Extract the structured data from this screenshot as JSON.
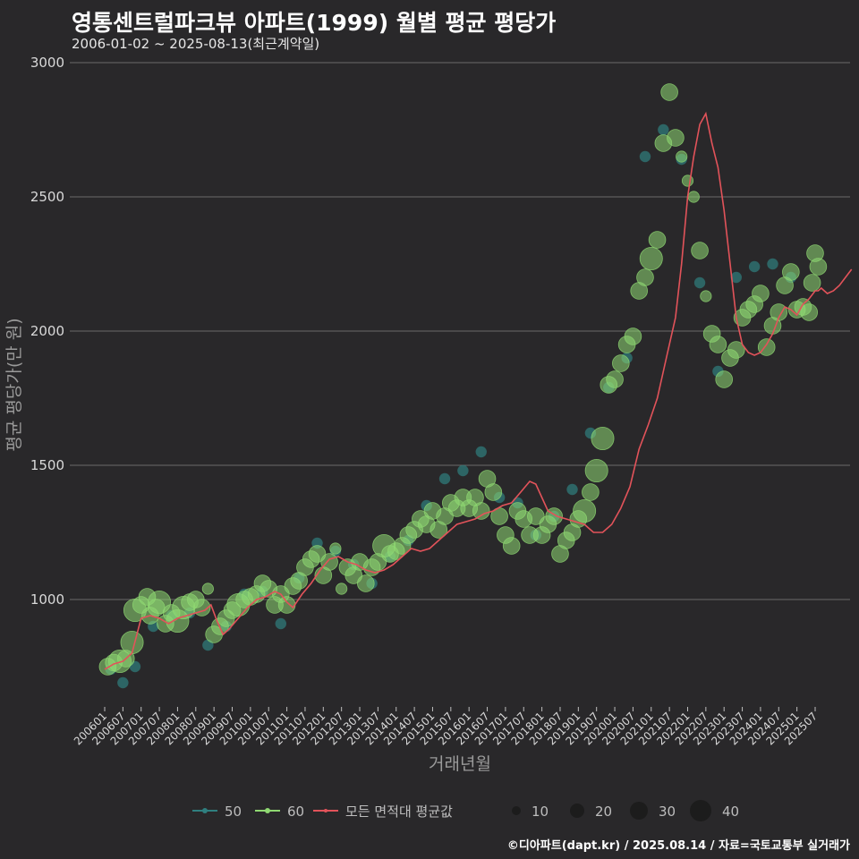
{
  "header": {
    "title": "영통센트럴파크뷰 아파트(1999) 월별 평균 평당가",
    "subtitle": "2006-01-02 ~ 2025-08-13(최근계약일)"
  },
  "footer": {
    "credit": "©디아파트(dapt.kr) / 2025.08.14 / 자료=국토교통부 실거래가"
  },
  "colors": {
    "s50": "#2f7f7f",
    "s60": "#8fd872",
    "avg": "#e2535a",
    "grid": "#6a6a6a",
    "size": "#1c1c1c"
  },
  "chart_data": {
    "type": "scatter",
    "title": "영통센트럴파크뷰 아파트(1999) 월별 평균 평당가",
    "xlabel": "거래년월",
    "ylabel": "평균 평당가(만 원)",
    "ylim": [
      600,
      3000
    ],
    "yticks": [
      1000,
      1500,
      2000,
      2500,
      3000
    ],
    "xticks": [
      "200601",
      "200607",
      "200701",
      "200707",
      "200801",
      "200807",
      "200901",
      "200907",
      "201001",
      "201007",
      "201101",
      "201107",
      "201201",
      "201207",
      "201301",
      "201307",
      "201401",
      "201407",
      "201501",
      "201507",
      "201601",
      "201607",
      "201701",
      "201707",
      "201801",
      "201807",
      "201901",
      "201907",
      "202001",
      "202007",
      "202101",
      "202107",
      "202201",
      "202207",
      "202301",
      "202307",
      "202401",
      "202407",
      "202501",
      "202507"
    ],
    "x_range_months": [
      0,
      234
    ],
    "legend": {
      "series": [
        {
          "key": "s50",
          "label": "50"
        },
        {
          "key": "s60",
          "label": "60"
        },
        {
          "key": "avg",
          "label": "모든 면적대 평균값"
        }
      ],
      "sizes": [
        10,
        20,
        30,
        40
      ]
    },
    "avg_line": [
      [
        0,
        740
      ],
      [
        3,
        760
      ],
      [
        6,
        770
      ],
      [
        9,
        800
      ],
      [
        12,
        930
      ],
      [
        15,
        940
      ],
      [
        18,
        930
      ],
      [
        21,
        910
      ],
      [
        24,
        930
      ],
      [
        27,
        940
      ],
      [
        30,
        950
      ],
      [
        33,
        960
      ],
      [
        35,
        980
      ],
      [
        37,
        920
      ],
      [
        39,
        870
      ],
      [
        41,
        890
      ],
      [
        44,
        930
      ],
      [
        47,
        970
      ],
      [
        50,
        1000
      ],
      [
        53,
        1010
      ],
      [
        56,
        1030
      ],
      [
        58,
        1020
      ],
      [
        60,
        990
      ],
      [
        62,
        970
      ],
      [
        65,
        1020
      ],
      [
        68,
        1060
      ],
      [
        71,
        1110
      ],
      [
        74,
        1150
      ],
      [
        77,
        1160
      ],
      [
        80,
        1140
      ],
      [
        83,
        1130
      ],
      [
        86,
        1110
      ],
      [
        89,
        1100
      ],
      [
        92,
        1110
      ],
      [
        95,
        1130
      ],
      [
        98,
        1160
      ],
      [
        101,
        1190
      ],
      [
        104,
        1180
      ],
      [
        107,
        1190
      ],
      [
        110,
        1220
      ],
      [
        113,
        1250
      ],
      [
        116,
        1280
      ],
      [
        119,
        1290
      ],
      [
        122,
        1300
      ],
      [
        125,
        1320
      ],
      [
        128,
        1330
      ],
      [
        131,
        1350
      ],
      [
        134,
        1360
      ],
      [
        137,
        1400
      ],
      [
        140,
        1440
      ],
      [
        142,
        1430
      ],
      [
        144,
        1380
      ],
      [
        146,
        1330
      ],
      [
        149,
        1310
      ],
      [
        152,
        1300
      ],
      [
        155,
        1290
      ],
      [
        158,
        1280
      ],
      [
        161,
        1250
      ],
      [
        164,
        1250
      ],
      [
        167,
        1280
      ],
      [
        170,
        1340
      ],
      [
        173,
        1420
      ],
      [
        176,
        1560
      ],
      [
        179,
        1650
      ],
      [
        182,
        1750
      ],
      [
        185,
        1900
      ],
      [
        188,
        2050
      ],
      [
        190,
        2250
      ],
      [
        192,
        2500
      ],
      [
        194,
        2650
      ],
      [
        196,
        2770
      ],
      [
        198,
        2810
      ],
      [
        200,
        2700
      ],
      [
        202,
        2610
      ],
      [
        204,
        2450
      ],
      [
        206,
        2250
      ],
      [
        208,
        2050
      ],
      [
        210,
        1950
      ],
      [
        212,
        1920
      ],
      [
        214,
        1910
      ],
      [
        216,
        1920
      ],
      [
        218,
        1950
      ],
      [
        220,
        1990
      ],
      [
        222,
        2050
      ],
      [
        224,
        2090
      ],
      [
        226,
        2080
      ],
      [
        228,
        2060
      ],
      [
        230,
        2100
      ],
      [
        232,
        2120
      ],
      [
        234,
        2150
      ],
      [
        236,
        2160
      ],
      [
        238,
        2140
      ],
      [
        240,
        2150
      ],
      [
        242,
        2170
      ],
      [
        244,
        2200
      ],
      [
        246,
        2230
      ],
      [
        235,
        2150
      ]
    ],
    "points_s60": [
      [
        1,
        750,
        2
      ],
      [
        3,
        765,
        2
      ],
      [
        5,
        770,
        3
      ],
      [
        7,
        780,
        2
      ],
      [
        9,
        840,
        3
      ],
      [
        10,
        960,
        3
      ],
      [
        12,
        980,
        2
      ],
      [
        14,
        1010,
        2
      ],
      [
        15,
        940,
        2
      ],
      [
        17,
        970,
        2
      ],
      [
        18,
        990,
        3
      ],
      [
        20,
        910,
        2
      ],
      [
        22,
        950,
        2
      ],
      [
        24,
        920,
        3
      ],
      [
        26,
        970,
        3
      ],
      [
        28,
        990,
        2
      ],
      [
        30,
        1000,
        2
      ],
      [
        32,
        970,
        2
      ],
      [
        34,
        1040,
        1
      ],
      [
        36,
        870,
        2
      ],
      [
        38,
        900,
        2
      ],
      [
        40,
        930,
        2
      ],
      [
        42,
        960,
        2
      ],
      [
        44,
        980,
        3
      ],
      [
        46,
        1000,
        2
      ],
      [
        48,
        1010,
        2
      ],
      [
        50,
        1020,
        2
      ],
      [
        52,
        1060,
        2
      ],
      [
        54,
        1040,
        2
      ],
      [
        56,
        980,
        2
      ],
      [
        58,
        1020,
        2
      ],
      [
        60,
        980,
        2
      ],
      [
        62,
        1050,
        2
      ],
      [
        64,
        1070,
        2
      ],
      [
        66,
        1120,
        2
      ],
      [
        68,
        1150,
        2
      ],
      [
        70,
        1170,
        2
      ],
      [
        72,
        1090,
        2
      ],
      [
        74,
        1140,
        2
      ],
      [
        76,
        1190,
        1
      ],
      [
        78,
        1040,
        1
      ],
      [
        80,
        1120,
        2
      ],
      [
        82,
        1090,
        2
      ],
      [
        84,
        1140,
        2
      ],
      [
        86,
        1060,
        2
      ],
      [
        88,
        1120,
        2
      ],
      [
        90,
        1140,
        2
      ],
      [
        92,
        1200,
        3
      ],
      [
        94,
        1170,
        2
      ],
      [
        96,
        1180,
        2
      ],
      [
        98,
        1200,
        2
      ],
      [
        100,
        1240,
        2
      ],
      [
        102,
        1260,
        2
      ],
      [
        104,
        1300,
        2
      ],
      [
        106,
        1280,
        2
      ],
      [
        108,
        1330,
        2
      ],
      [
        110,
        1260,
        2
      ],
      [
        112,
        1310,
        2
      ],
      [
        114,
        1360,
        2
      ],
      [
        116,
        1340,
        2
      ],
      [
        118,
        1380,
        2
      ],
      [
        120,
        1340,
        2
      ],
      [
        122,
        1380,
        2
      ],
      [
        124,
        1330,
        2
      ],
      [
        126,
        1450,
        2
      ],
      [
        128,
        1400,
        2
      ],
      [
        130,
        1310,
        2
      ],
      [
        132,
        1240,
        2
      ],
      [
        134,
        1200,
        2
      ],
      [
        136,
        1330,
        2
      ],
      [
        138,
        1300,
        2
      ],
      [
        140,
        1240,
        2
      ],
      [
        142,
        1310,
        2
      ],
      [
        144,
        1240,
        2
      ],
      [
        146,
        1280,
        2
      ],
      [
        148,
        1310,
        2
      ],
      [
        150,
        1170,
        2
      ],
      [
        152,
        1220,
        2
      ],
      [
        154,
        1250,
        2
      ],
      [
        156,
        1300,
        2
      ],
      [
        158,
        1330,
        3
      ],
      [
        160,
        1400,
        2
      ],
      [
        162,
        1480,
        3
      ],
      [
        164,
        1600,
        3
      ],
      [
        166,
        1800,
        2
      ],
      [
        168,
        1820,
        2
      ],
      [
        170,
        1880,
        2
      ],
      [
        172,
        1950,
        2
      ],
      [
        174,
        1980,
        2
      ],
      [
        176,
        2150,
        2
      ],
      [
        178,
        2200,
        2
      ],
      [
        180,
        2270,
        3
      ],
      [
        182,
        2340,
        2
      ],
      [
        184,
        2700,
        2
      ],
      [
        186,
        2890,
        2
      ],
      [
        188,
        2720,
        2
      ],
      [
        190,
        2650,
        1
      ],
      [
        192,
        2560,
        1
      ],
      [
        194,
        2500,
        1
      ],
      [
        196,
        2300,
        2
      ],
      [
        198,
        2130,
        1
      ],
      [
        200,
        1990,
        2
      ],
      [
        202,
        1950,
        2
      ],
      [
        204,
        1820,
        2
      ],
      [
        206,
        1900,
        2
      ],
      [
        208,
        1930,
        2
      ],
      [
        210,
        2050,
        2
      ],
      [
        212,
        2080,
        2
      ],
      [
        214,
        2100,
        2
      ],
      [
        216,
        2140,
        2
      ],
      [
        218,
        1940,
        2
      ],
      [
        220,
        2020,
        2
      ],
      [
        222,
        2070,
        2
      ],
      [
        224,
        2170,
        2
      ],
      [
        226,
        2220,
        2
      ],
      [
        228,
        2080,
        2
      ],
      [
        230,
        2090,
        2
      ],
      [
        232,
        2070,
        2
      ],
      [
        234,
        2290,
        2
      ],
      [
        235,
        2240,
        2
      ],
      [
        233,
        2180,
        2
      ]
    ],
    "points_s50": [
      [
        2,
        740,
        1
      ],
      [
        6,
        690,
        1
      ],
      [
        10,
        750,
        1
      ],
      [
        16,
        900,
        1
      ],
      [
        22,
        940,
        1
      ],
      [
        28,
        950,
        1
      ],
      [
        34,
        830,
        1
      ],
      [
        40,
        900,
        1
      ],
      [
        46,
        1020,
        1
      ],
      [
        52,
        1030,
        1
      ],
      [
        58,
        910,
        1
      ],
      [
        64,
        1080,
        1
      ],
      [
        70,
        1210,
        1
      ],
      [
        76,
        1180,
        1
      ],
      [
        82,
        1130,
        1
      ],
      [
        88,
        1060,
        1
      ],
      [
        94,
        1160,
        1
      ],
      [
        100,
        1220,
        1
      ],
      [
        106,
        1350,
        1
      ],
      [
        112,
        1450,
        1
      ],
      [
        118,
        1480,
        1
      ],
      [
        124,
        1550,
        1
      ],
      [
        130,
        1380,
        1
      ],
      [
        136,
        1360,
        1
      ],
      [
        142,
        1240,
        1
      ],
      [
        148,
        1310,
        1
      ],
      [
        154,
        1410,
        1
      ],
      [
        160,
        1620,
        1
      ],
      [
        166,
        1790,
        1
      ],
      [
        172,
        1900,
        1
      ],
      [
        178,
        2650,
        1
      ],
      [
        184,
        2750,
        1
      ],
      [
        190,
        2640,
        1
      ],
      [
        196,
        2180,
        1
      ],
      [
        202,
        1850,
        1
      ],
      [
        208,
        2200,
        1
      ],
      [
        214,
        2240,
        1
      ],
      [
        220,
        2250,
        1
      ],
      [
        226,
        2200,
        1
      ]
    ]
  }
}
